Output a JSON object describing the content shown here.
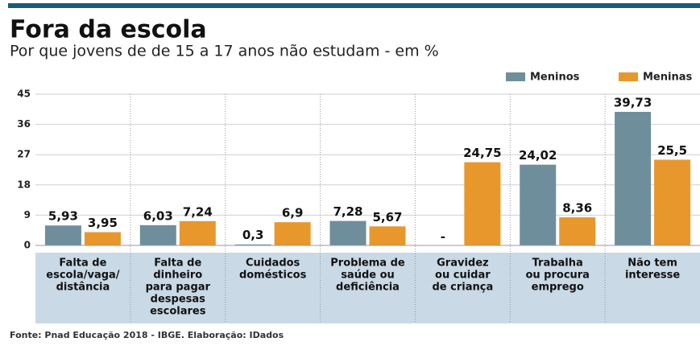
{
  "chart_data": {
    "type": "bar",
    "title": "Fora da escola",
    "subtitle": "Por que jovens de de 15 a 17 anos não estudam - em %",
    "categories": [
      [
        "Falta de",
        "escola/vaga/",
        "distância"
      ],
      [
        "Falta de",
        "dinheiro",
        "para pagar",
        "despesas",
        "escolares"
      ],
      [
        "Cuidados",
        "domésticos"
      ],
      [
        "Problema de",
        "saúde ou",
        "deficiência"
      ],
      [
        "Gravidez",
        "ou cuidar",
        "de criança"
      ],
      [
        "Trabalha",
        "ou procura",
        "emprego"
      ],
      [
        "Não tem",
        "interesse"
      ]
    ],
    "series": [
      {
        "name": "Meninos",
        "color": "#6f8e9c",
        "values": [
          5.93,
          6.03,
          0.3,
          7.28,
          null,
          24.02,
          39.73
        ],
        "value_labels": [
          "5,93",
          "6,03",
          "0,3",
          "7,28",
          "-",
          "24,02",
          "39,73"
        ]
      },
      {
        "name": "Meninas",
        "color": "#e8972c",
        "values": [
          3.95,
          7.24,
          6.9,
          5.67,
          24.75,
          8.36,
          25.5
        ],
        "value_labels": [
          "3,95",
          "7,24",
          "6,9",
          "5,67",
          "24,75",
          "8,36",
          "25,5"
        ]
      }
    ],
    "ylim": [
      0,
      45
    ],
    "yticks": [
      0,
      9,
      18,
      27,
      36,
      45
    ],
    "grid": true,
    "legend": "top-right",
    "source": "Fonte: Pnad Educação 2018 - IBGE. Elaboração: IDados"
  }
}
